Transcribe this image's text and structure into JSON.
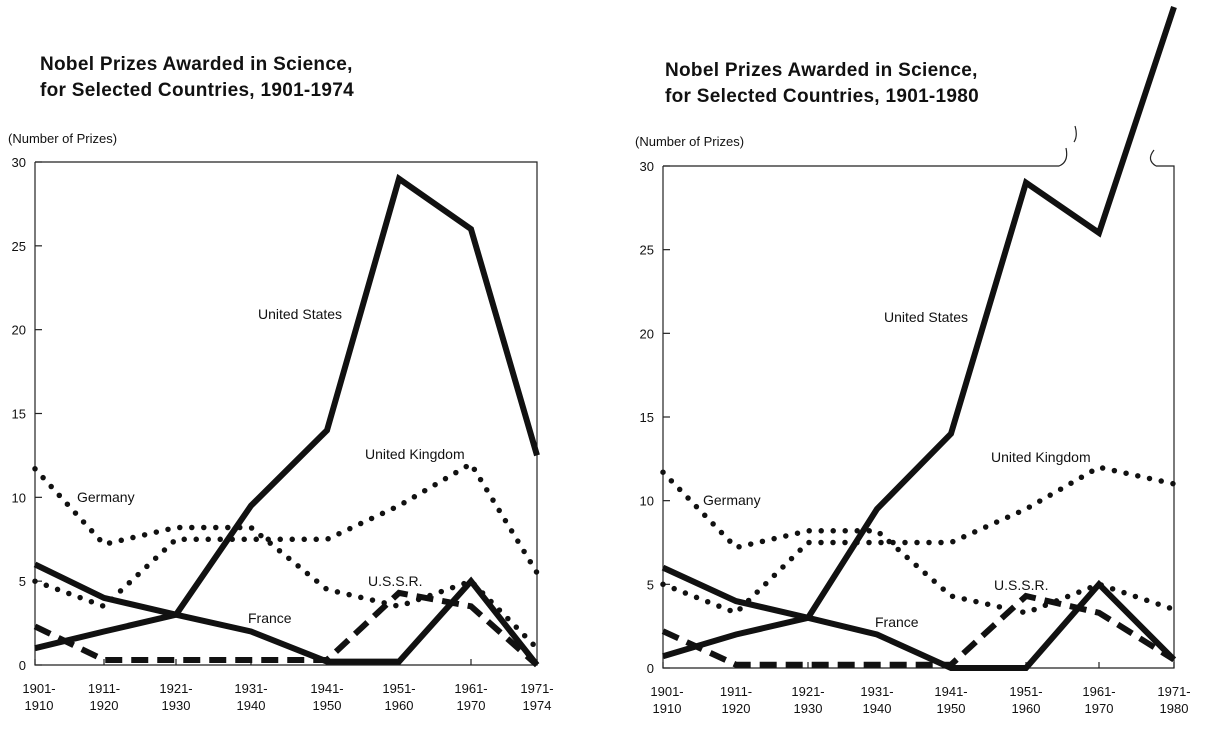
{
  "chart_data": [
    {
      "type": "line",
      "title_line1": "Nobel Prizes Awarded in Science,",
      "title_line2": "for Selected Countries, 1901-1974",
      "ylabel": "(Number of Prizes)",
      "ylim": [
        0,
        30
      ],
      "yticks": [
        0,
        5,
        10,
        15,
        20,
        25,
        30
      ],
      "grid": false,
      "categories": [
        [
          "1901-",
          "1910"
        ],
        [
          "1911-",
          "1920"
        ],
        [
          "1921-",
          "1930"
        ],
        [
          "1931-",
          "1940"
        ],
        [
          "1941-",
          "1950"
        ],
        [
          "1951-",
          "1960"
        ],
        [
          "1961-",
          "1970"
        ],
        [
          "1971-",
          "1974"
        ]
      ],
      "series": [
        {
          "name": "United States",
          "style": "solid",
          "values": [
            1,
            2,
            3,
            9.5,
            14,
            29,
            26,
            12.5
          ]
        },
        {
          "name": "United Kingdom",
          "style": "dotted",
          "values": [
            5,
            3.5,
            7.5,
            7.5,
            7.5,
            9.5,
            12,
            5.5
          ]
        },
        {
          "name": "Germany",
          "style": "dotted",
          "values": [
            11.7,
            7.2,
            8.2,
            8.2,
            4.5,
            3.5,
            5,
            1
          ]
        },
        {
          "name": "France",
          "style": "solid",
          "values": [
            6,
            4,
            3,
            2,
            0.2,
            0.2,
            5,
            0
          ]
        },
        {
          "name": "U.S.S.R.",
          "style": "dashed",
          "values": [
            2.3,
            0.3,
            0.3,
            0.3,
            0.3,
            4.3,
            3.5,
            0
          ]
        }
      ]
    },
    {
      "type": "line",
      "title_line1": "Nobel Prizes Awarded in Science,",
      "title_line2": "for Selected Countries, 1901-1980",
      "ylabel": "(Number of Prizes)",
      "ylim": [
        0,
        30
      ],
      "yticks": [
        0,
        5,
        10,
        15,
        20,
        25,
        30
      ],
      "grid": false,
      "categories": [
        [
          "1901-",
          "1910"
        ],
        [
          "1911-",
          "1920"
        ],
        [
          "1921-",
          "1930"
        ],
        [
          "1931-",
          "1940"
        ],
        [
          "1941-",
          "1950"
        ],
        [
          "1951-",
          "1960"
        ],
        [
          "1961-",
          "1970"
        ],
        [
          "1971-",
          "1980"
        ]
      ],
      "series": [
        {
          "name": "United States",
          "style": "solid",
          "values": [
            0.7,
            2,
            3,
            9.5,
            14,
            29,
            26,
            39.5
          ]
        },
        {
          "name": "United Kingdom",
          "style": "dotted",
          "values": [
            5,
            3.3,
            7.5,
            7.5,
            7.5,
            9.5,
            12,
            11
          ]
        },
        {
          "name": "Germany",
          "style": "dotted",
          "values": [
            11.7,
            7.2,
            8.2,
            8.2,
            4.3,
            3.3,
            5,
            3.5
          ]
        },
        {
          "name": "France",
          "style": "solid",
          "values": [
            6,
            4,
            3,
            2,
            0,
            0,
            5,
            0.5
          ]
        },
        {
          "name": "U.S.S.R.",
          "style": "dashed",
          "values": [
            2.2,
            0.2,
            0.2,
            0.2,
            0.2,
            4.3,
            3.3,
            0.5
          ]
        }
      ]
    }
  ]
}
